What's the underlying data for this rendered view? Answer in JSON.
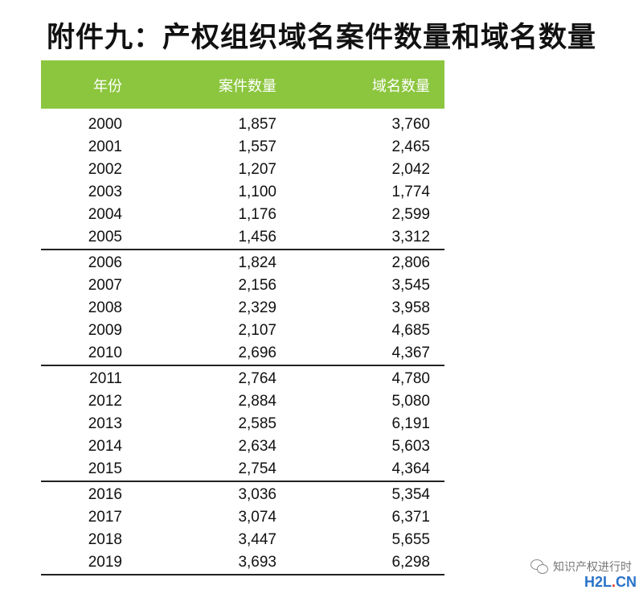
{
  "title": "附件九：产权组织域名案件数量和域名数量",
  "table": {
    "headers": [
      "年份",
      "案件数量",
      "域名数量"
    ],
    "rows": [
      [
        "2000",
        "1,857",
        "3,760"
      ],
      [
        "2001",
        "1,557",
        "2,465"
      ],
      [
        "2002",
        "1,207",
        "2,042"
      ],
      [
        "2003",
        "1,100",
        "1,774"
      ],
      [
        "2004",
        "1,176",
        "2,599"
      ],
      [
        "2005",
        "1,456",
        "3,312"
      ],
      [
        "2006",
        "1,824",
        "2,806"
      ],
      [
        "2007",
        "2,156",
        "3,545"
      ],
      [
        "2008",
        "2,329",
        "3,958"
      ],
      [
        "2009",
        "2,107",
        "4,685"
      ],
      [
        "2010",
        "2,696",
        "4,367"
      ],
      [
        "2011",
        "2,764",
        "4,780"
      ],
      [
        "2012",
        "2,884",
        "5,080"
      ],
      [
        "2013",
        "2,585",
        "6,191"
      ],
      [
        "2014",
        "2,634",
        "5,603"
      ],
      [
        "2015",
        "2,754",
        "4,364"
      ],
      [
        "2016",
        "3,036",
        "5,354"
      ],
      [
        "2017",
        "3,074",
        "6,371"
      ],
      [
        "2018",
        "3,447",
        "5,655"
      ],
      [
        "2019",
        "3,693",
        "6,298"
      ]
    ]
  },
  "watermark": {
    "text": "知识产权进行时",
    "logo_main": "H2L",
    "logo_dot": ".",
    "logo_suffix": "CN"
  },
  "colors": {
    "header_bg": "#8cc63f",
    "header_text": "#ffffff",
    "logo_blue": "#2a73c8",
    "logo_red": "#e23a2a"
  }
}
